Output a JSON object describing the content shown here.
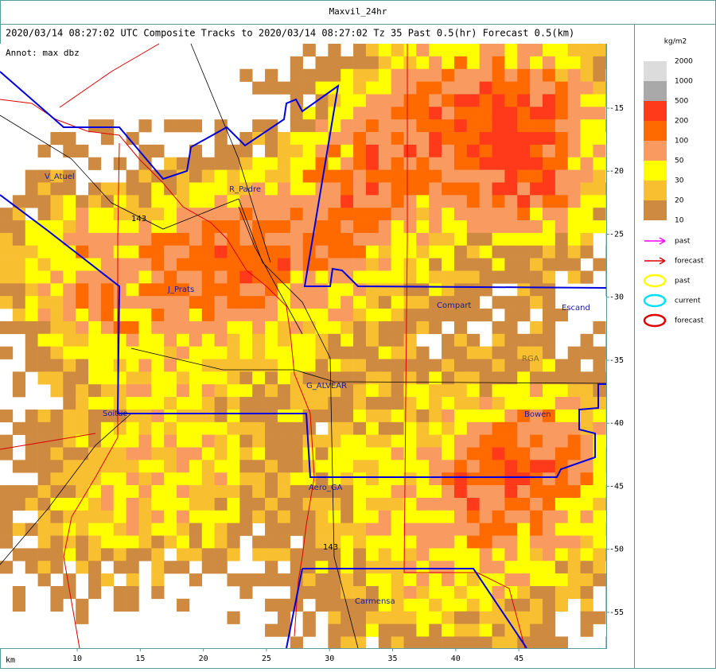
{
  "window_title": "Maxvil_24hr",
  "header": "2020/03/14 08:27:02 UTC Composite Tracks to 2020/03/14 08:27:02 Tz 35 Past 0.5(hr) Forecast 0.5(km)",
  "annotation": "Annot: max dbz",
  "axes": {
    "x_label": "km",
    "x_range": [
      3.88,
      51.93
    ],
    "x_ticks": [
      10,
      15,
      20,
      25,
      30,
      35,
      40,
      45
    ],
    "y_range": [
      -9.89,
      -57.84
    ],
    "y_ticks": [
      -15,
      -20,
      -25,
      -30,
      -35,
      -40,
      -45,
      -50,
      -55
    ]
  },
  "places": [
    "V_Atuel",
    "R_Padre",
    "143",
    "J_Prats",
    "Compart",
    "Escand",
    "RGA",
    "G_ALVEAR",
    "Soitue",
    "Bowen",
    "Aero_GA",
    "143",
    "Carmensa"
  ],
  "legend": {
    "unit": "kg/m2",
    "levels": [
      2000,
      1000,
      500,
      200,
      100,
      50,
      30,
      20,
      10
    ],
    "colors": [
      "#dcdcdc",
      "#a9a9a9",
      "#ff3a1a",
      "#ff6a00",
      "#f99a60",
      "#ffff00",
      "#f8c030",
      "#cd8a40"
    ],
    "tracks": [
      {
        "label": "past",
        "color": "#ff00ff",
        "shape": "arrow"
      },
      {
        "label": "forecast",
        "color": "#e00000",
        "shape": "arrow"
      },
      {
        "label": "past",
        "color": "#ffff00",
        "shape": "ellipse"
      },
      {
        "label": "current",
        "color": "#00e0ff",
        "shape": "ellipse"
      },
      {
        "label": "forecast",
        "color": "#e00000",
        "shape": "ellipse"
      }
    ]
  }
}
